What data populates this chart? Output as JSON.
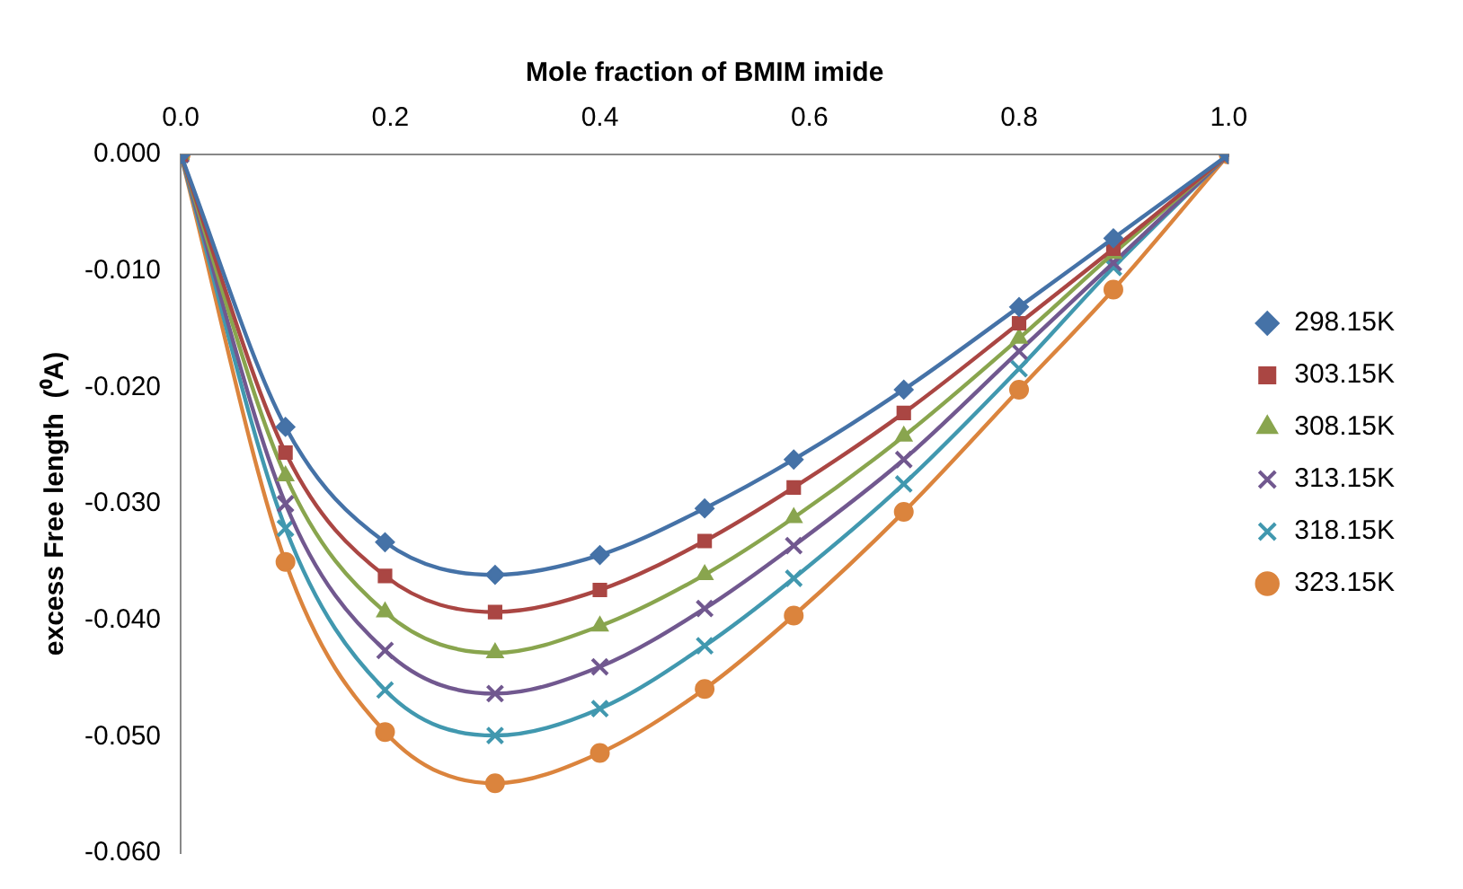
{
  "chart_data": {
    "type": "line",
    "xlabel": "Mole fraction of BMIM imide",
    "ylabel": "excess Free length  (⁰A)",
    "x": [
      0,
      0.1,
      0.195,
      0.3,
      0.4,
      0.5,
      0.585,
      0.69,
      0.8,
      0.89,
      1.0
    ],
    "xlim": [
      0,
      1.0
    ],
    "xticks": [
      {
        "value": 0,
        "label": "0.0"
      },
      0.2,
      0.4,
      0.6,
      0.8,
      {
        "value": 1.0,
        "label": "1.0"
      }
    ],
    "ylim": [
      -0.06,
      0
    ],
    "yticks": [
      {
        "value": -0.06,
        "label": "-0.060"
      },
      {
        "value": -0.05,
        "label": "-0.050"
      },
      {
        "value": -0.04,
        "label": "-0.040"
      },
      {
        "value": -0.03,
        "label": "-0.030"
      },
      {
        "value": -0.02,
        "label": "-0.020"
      },
      {
        "value": -0.01,
        "label": "-0.010"
      },
      {
        "value": 0,
        "label": "0.000"
      }
    ],
    "grid": false,
    "legend": "right",
    "series": [
      {
        "name": "298.15K",
        "color": "#4572a7",
        "marker": "diamond",
        "values": [
          0,
          -0.0234,
          -0.0333,
          -0.0361,
          -0.0344,
          -0.0304,
          -0.0262,
          -0.0202,
          -0.0131,
          -0.0072,
          0
        ]
      },
      {
        "name": "303.15K",
        "color": "#aa4643",
        "marker": "square",
        "values": [
          0,
          -0.0256,
          -0.0362,
          -0.0393,
          -0.0374,
          -0.0332,
          -0.0286,
          -0.0222,
          -0.0145,
          -0.0081,
          0
        ]
      },
      {
        "name": "308.15K",
        "color": "#89a54e",
        "marker": "triangle",
        "values": [
          0,
          -0.0276,
          -0.0393,
          -0.0428,
          -0.0405,
          -0.0361,
          -0.0312,
          -0.0242,
          -0.0158,
          -0.0085,
          0
        ]
      },
      {
        "name": "313.15K",
        "color": "#71588f",
        "marker": "cross",
        "values": [
          0,
          -0.03,
          -0.0426,
          -0.0463,
          -0.044,
          -0.039,
          -0.0336,
          -0.0262,
          -0.0169,
          -0.0093,
          0
        ]
      },
      {
        "name": "318.15K",
        "color": "#4198af",
        "marker": "cross",
        "values": [
          0,
          -0.0321,
          -0.046,
          -0.0499,
          -0.0476,
          -0.0422,
          -0.0364,
          -0.0283,
          -0.0184,
          -0.0097,
          0
        ]
      },
      {
        "name": "323.15K",
        "color": "#db843d",
        "marker": "circle",
        "values": [
          0,
          -0.035,
          -0.0496,
          -0.054,
          -0.0514,
          -0.0459,
          -0.0396,
          -0.0307,
          -0.0202,
          -0.0116,
          0
        ]
      }
    ]
  }
}
